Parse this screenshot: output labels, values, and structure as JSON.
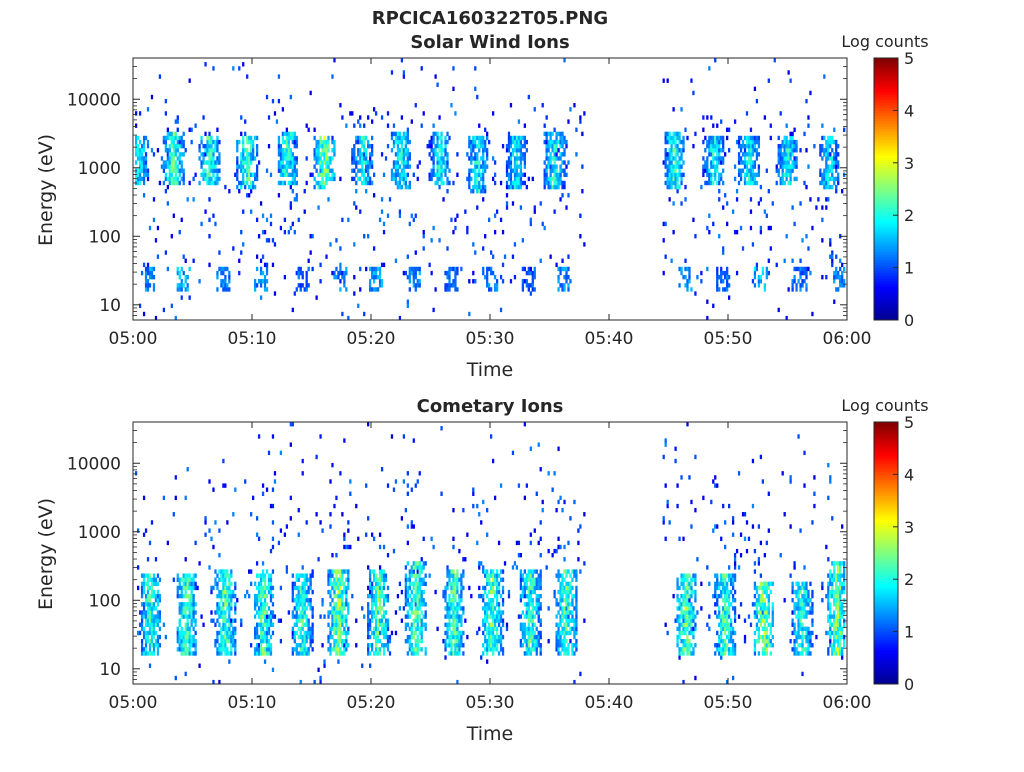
{
  "figure": {
    "title": "RPCICA160322T05.PNG"
  },
  "colormap": [
    "#00008f",
    "#0000ff",
    "#0080ff",
    "#00ffff",
    "#80ff80",
    "#ffff00",
    "#ff8000",
    "#ff0000",
    "#800000"
  ],
  "chart_data": [
    {
      "type": "heatmap",
      "id": "solar",
      "title": "Solar Wind Ions",
      "xlabel": "Time",
      "ylabel": "Energy (eV)",
      "xlim": [
        "05:00",
        "06:00"
      ],
      "x_ticks": [
        "05:00",
        "05:10",
        "05:20",
        "05:30",
        "05:40",
        "05:50",
        "06:00"
      ],
      "y_scale": "log",
      "ylim": [
        6,
        40000
      ],
      "y_ticks": [
        10,
        100,
        1000,
        10000
      ],
      "y_tick_labels": [
        "10",
        "100",
        "1000",
        "10000"
      ],
      "colorbar": {
        "label": "Log counts",
        "min": 0,
        "max": 5,
        "ticks": [
          "0",
          "1",
          "2",
          "3",
          "4",
          "5"
        ]
      },
      "data_gap": {
        "from_min": 38,
        "to_min": 44.5
      },
      "bursts": [
        {
          "t_min": 0.5,
          "e_low": 600,
          "e_high": 3000,
          "peak": 2.2
        },
        {
          "t_min": 3.4,
          "e_low": 600,
          "e_high": 3500,
          "peak": 2.6
        },
        {
          "t_min": 6.4,
          "e_low": 600,
          "e_high": 3000,
          "peak": 2.5
        },
        {
          "t_min": 9.6,
          "e_low": 500,
          "e_high": 3000,
          "peak": 2.6
        },
        {
          "t_min": 13.0,
          "e_low": 600,
          "e_high": 3500,
          "peak": 2.4
        },
        {
          "t_min": 16.1,
          "e_low": 500,
          "e_high": 3000,
          "peak": 2.9
        },
        {
          "t_min": 19.3,
          "e_low": 600,
          "e_high": 3000,
          "peak": 2.3
        },
        {
          "t_min": 22.5,
          "e_low": 500,
          "e_high": 3500,
          "peak": 2.3
        },
        {
          "t_min": 25.8,
          "e_low": 600,
          "e_high": 3500,
          "peak": 2.2
        },
        {
          "t_min": 29.0,
          "e_low": 400,
          "e_high": 3000,
          "peak": 2.2
        },
        {
          "t_min": 32.2,
          "e_low": 500,
          "e_high": 3000,
          "peak": 2.1
        },
        {
          "t_min": 35.4,
          "e_low": 500,
          "e_high": 3500,
          "peak": 2.3
        },
        {
          "t_min": 45.5,
          "e_low": 500,
          "e_high": 3500,
          "peak": 2.4
        },
        {
          "t_min": 48.8,
          "e_low": 600,
          "e_high": 3000,
          "peak": 2.2
        },
        {
          "t_min": 51.8,
          "e_low": 600,
          "e_high": 3000,
          "peak": 2.2
        },
        {
          "t_min": 55.0,
          "e_low": 600,
          "e_high": 3000,
          "peak": 2.3
        },
        {
          "t_min": 58.5,
          "e_low": 500,
          "e_high": 3000,
          "peak": 2.1
        }
      ],
      "low_bursts": [
        {
          "t_min": 1.2,
          "peak": 1.6
        },
        {
          "t_min": 4.3,
          "peak": 1.8
        },
        {
          "t_min": 7.6,
          "peak": 1.5
        },
        {
          "t_min": 10.8,
          "peak": 1.6
        },
        {
          "t_min": 14.2,
          "peak": 1.3
        },
        {
          "t_min": 17.4,
          "peak": 1.6
        },
        {
          "t_min": 20.4,
          "peak": 1.7
        },
        {
          "t_min": 23.6,
          "peak": 1.6
        },
        {
          "t_min": 26.8,
          "peak": 1.4
        },
        {
          "t_min": 30.0,
          "peak": 1.5
        },
        {
          "t_min": 33.2,
          "peak": 1.3
        },
        {
          "t_min": 36.2,
          "peak": 1.6
        },
        {
          "t_min": 46.4,
          "peak": 1.6
        },
        {
          "t_min": 49.6,
          "peak": 1.4
        },
        {
          "t_min": 52.8,
          "peak": 1.9
        },
        {
          "t_min": 56.0,
          "peak": 1.4
        },
        {
          "t_min": 59.4,
          "peak": 1.5
        }
      ],
      "background_density": 0.04
    },
    {
      "type": "heatmap",
      "id": "comet",
      "title": "Cometary Ions",
      "xlabel": "Time",
      "ylabel": "Energy (eV)",
      "xlim": [
        "05:00",
        "06:00"
      ],
      "x_ticks": [
        "05:00",
        "05:10",
        "05:20",
        "05:30",
        "05:40",
        "05:50",
        "06:00"
      ],
      "y_scale": "log",
      "ylim": [
        6,
        40000
      ],
      "y_ticks": [
        10,
        100,
        1000,
        10000
      ],
      "y_tick_labels": [
        "10",
        "100",
        "1000",
        "10000"
      ],
      "colorbar": {
        "label": "Log counts",
        "min": 0,
        "max": 5,
        "ticks": [
          "0",
          "1",
          "2",
          "3",
          "4",
          "5"
        ]
      },
      "data_gap": {
        "from_min": 38,
        "to_min": 44.5
      },
      "bursts": [
        {
          "t_min": 1.5,
          "e_low": 15,
          "e_high": 250,
          "peak": 2.5
        },
        {
          "t_min": 4.5,
          "e_low": 15,
          "e_high": 250,
          "peak": 2.6
        },
        {
          "t_min": 7.8,
          "e_low": 15,
          "e_high": 300,
          "peak": 2.7
        },
        {
          "t_min": 11.0,
          "e_low": 15,
          "e_high": 300,
          "peak": 2.6
        },
        {
          "t_min": 14.2,
          "e_low": 15,
          "e_high": 250,
          "peak": 2.4
        },
        {
          "t_min": 17.3,
          "e_low": 15,
          "e_high": 300,
          "peak": 2.9
        },
        {
          "t_min": 20.6,
          "e_low": 15,
          "e_high": 300,
          "peak": 2.7
        },
        {
          "t_min": 23.8,
          "e_low": 15,
          "e_high": 350,
          "peak": 2.8
        },
        {
          "t_min": 27.0,
          "e_low": 15,
          "e_high": 300,
          "peak": 2.6
        },
        {
          "t_min": 30.2,
          "e_low": 15,
          "e_high": 300,
          "peak": 2.7
        },
        {
          "t_min": 33.4,
          "e_low": 15,
          "e_high": 300,
          "peak": 2.5
        },
        {
          "t_min": 36.4,
          "e_low": 15,
          "e_high": 300,
          "peak": 2.7
        },
        {
          "t_min": 46.5,
          "e_low": 15,
          "e_high": 250,
          "peak": 2.8
        },
        {
          "t_min": 49.8,
          "e_low": 15,
          "e_high": 250,
          "peak": 2.5
        },
        {
          "t_min": 53.0,
          "e_low": 15,
          "e_high": 200,
          "peak": 3.0
        },
        {
          "t_min": 56.2,
          "e_low": 15,
          "e_high": 200,
          "peak": 2.4
        },
        {
          "t_min": 59.2,
          "e_low": 15,
          "e_high": 350,
          "peak": 2.9
        }
      ],
      "low_bursts": [],
      "background_density": 0.035
    }
  ]
}
